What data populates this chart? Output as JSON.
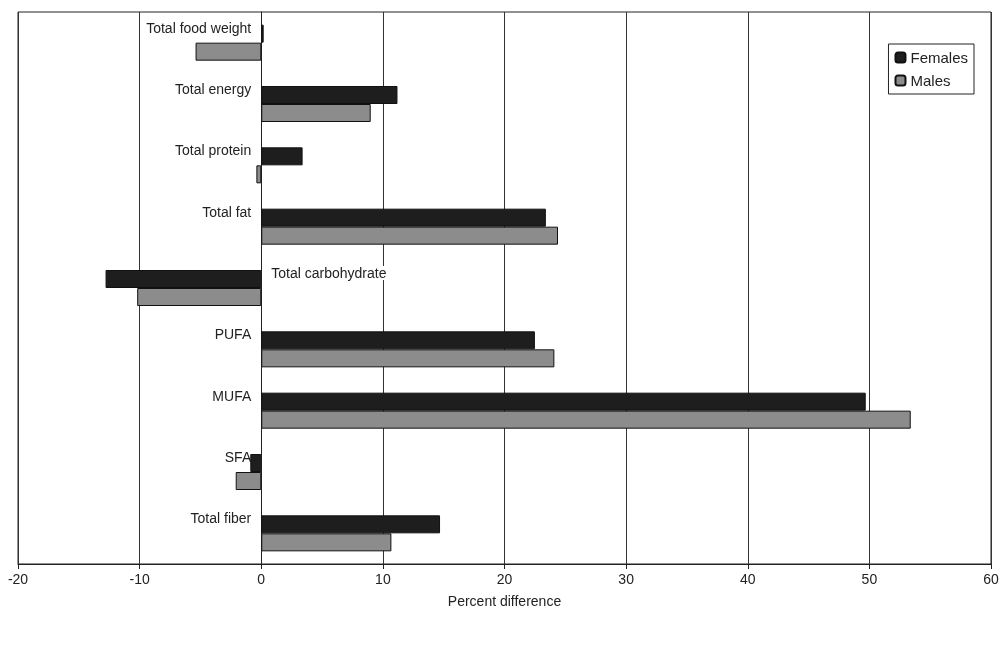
{
  "chart_data": {
    "type": "bar",
    "orientation": "horizontal",
    "xlabel": "Percent difference",
    "categories": [
      "Total food weight",
      "Total energy",
      "Total protein",
      "Total fat",
      "Total carbohydrate",
      "PUFA",
      "MUFA",
      "SFA",
      "Total fiber"
    ],
    "series": [
      {
        "name": "Females",
        "color": "#1e1e1e",
        "values": [
          0.2,
          11.2,
          3.4,
          23.4,
          -12.8,
          22.5,
          49.7,
          -0.9,
          14.7
        ]
      },
      {
        "name": "Males",
        "color": "#8c8c8c",
        "values": [
          -5.4,
          9.0,
          -0.4,
          24.4,
          -10.2,
          24.1,
          53.4,
          -2.1,
          10.7
        ]
      }
    ],
    "xlim": [
      -20,
      60
    ],
    "xticks": [
      -20,
      -10,
      0,
      10,
      20,
      30,
      40,
      50,
      60
    ],
    "grid": "x",
    "legend": "top right"
  }
}
